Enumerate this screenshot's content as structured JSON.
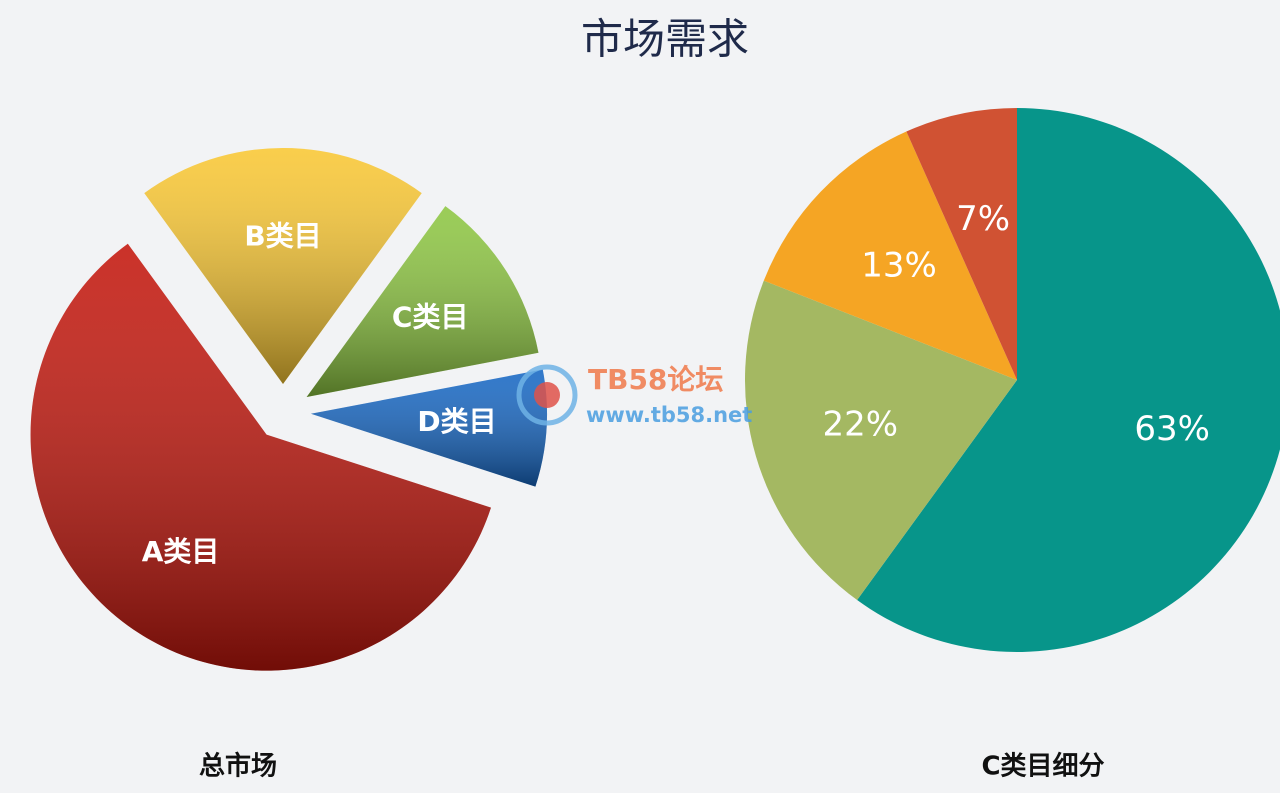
{
  "title": "市场需求",
  "chart_data": [
    {
      "type": "pie",
      "exploded": true,
      "title": "总市场",
      "categories": [
        "A类目",
        "B类目",
        "C类目",
        "D类目"
      ],
      "values": [
        60,
        20,
        12,
        8
      ],
      "colors": [
        "#c3160c",
        "#f9c733",
        "#8dc641",
        "#1667c4"
      ]
    },
    {
      "type": "pie",
      "exploded": false,
      "title": "C类目细分",
      "values": [
        63,
        22,
        13,
        7
      ],
      "value_labels": [
        "63%",
        "22%",
        "13%",
        "7%"
      ],
      "colors": [
        "#07958a",
        "#a4b862",
        "#f5a524",
        "#d05233"
      ]
    }
  ],
  "watermark": {
    "name": "TB58论坛",
    "url": "www.tb58.net"
  }
}
